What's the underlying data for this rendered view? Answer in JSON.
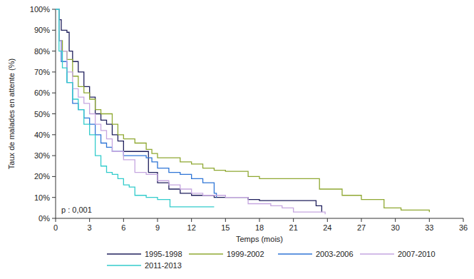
{
  "chart_data": {
    "type": "step",
    "x_label": "Temps (mois)",
    "y_label": "Taux de malades en attente (%)",
    "annotation": "p : 0,001",
    "xlim": [
      0,
      36
    ],
    "ylim": [
      0,
      100
    ],
    "xticks": [
      0,
      3,
      6,
      9,
      12,
      15,
      18,
      21,
      24,
      27,
      30,
      33,
      36
    ],
    "yticks": [
      {
        "value": 0,
        "label": "0%"
      },
      {
        "value": 10,
        "label": "10%"
      },
      {
        "value": 20,
        "label": "20%"
      },
      {
        "value": 30,
        "label": "30%"
      },
      {
        "value": 40,
        "label": "40%"
      },
      {
        "value": 50,
        "label": "50%"
      },
      {
        "value": 60,
        "label": "60%"
      },
      {
        "value": 70,
        "label": "70%"
      },
      {
        "value": 80,
        "label": "80%"
      },
      {
        "value": 90,
        "label": "90%"
      },
      {
        "value": 100,
        "label": "100%"
      }
    ],
    "grid": false,
    "legend": "bottom",
    "series": [
      {
        "name": "1995-1998",
        "color": "#1f1f5c",
        "x": [
          0,
          0.3,
          0.5,
          1,
          1.2,
          1.5,
          2,
          2.5,
          3,
          3.5,
          4,
          4.5,
          5,
          5.5,
          6,
          8.2,
          9,
          10,
          11,
          12,
          14,
          17,
          18,
          23,
          23.5
        ],
        "values": [
          100,
          95,
          90,
          89,
          80,
          75,
          70,
          63,
          58,
          50,
          47,
          45,
          40,
          37,
          32,
          22,
          17,
          14,
          12,
          11,
          10,
          9,
          8.5,
          6,
          3
        ]
      },
      {
        "name": "1999-2002",
        "color": "#8fa832",
        "x": [
          0,
          0.3,
          0.6,
          1,
          1.5,
          2,
          2.5,
          3,
          3.5,
          4,
          5,
          5.5,
          6,
          7,
          8,
          8.5,
          9,
          11,
          12,
          13,
          14,
          15,
          17,
          18,
          23.3,
          25.3,
          27,
          29,
          30.5,
          33
        ],
        "values": [
          100,
          85,
          80,
          76,
          68,
          63,
          60,
          57,
          52,
          50,
          45,
          40,
          38,
          36,
          33,
          31,
          29,
          27,
          26,
          24,
          23,
          22.5,
          20,
          19,
          14,
          11,
          9,
          5,
          4,
          3
        ]
      },
      {
        "name": "2003-2006",
        "color": "#2e75d6",
        "x": [
          0,
          0.3,
          0.5,
          1,
          1.5,
          2,
          2.5,
          3,
          3.5,
          4,
          4.5,
          5,
          6,
          8,
          8.5,
          9,
          10,
          11,
          12,
          13,
          14,
          14.2
        ],
        "values": [
          100,
          85,
          75,
          65,
          55,
          52,
          48,
          45,
          40,
          36,
          34,
          32,
          30,
          29,
          27,
          24,
          22,
          21,
          19,
          17,
          12,
          10
        ]
      },
      {
        "name": "2007-2010",
        "color": "#c5a6e0",
        "x": [
          0,
          0.3,
          0.5,
          1,
          1.5,
          2,
          2.5,
          3,
          3.5,
          4,
          4.5,
          5,
          6,
          7,
          8,
          9,
          10,
          11,
          12,
          13,
          15,
          17,
          19,
          20,
          21,
          23.8
        ],
        "values": [
          100,
          85,
          80,
          70,
          62,
          58,
          55,
          50,
          45,
          42,
          38,
          32,
          28,
          22,
          21,
          18,
          16,
          14,
          12,
          11,
          10,
          7,
          6,
          5,
          3,
          2
        ]
      },
      {
        "name": "2011-2013",
        "color": "#33cccc",
        "x": [
          0,
          0.3,
          0.6,
          1,
          1.5,
          2,
          2.5,
          3,
          3.5,
          4,
          4.5,
          5,
          5.5,
          6,
          6.5,
          7,
          8,
          9,
          10.1,
          14
        ],
        "values": [
          100,
          80,
          72,
          65,
          57,
          52,
          45,
          40,
          30,
          25,
          22,
          21,
          19,
          16,
          15,
          11,
          10,
          9,
          5.5,
          5.5
        ]
      }
    ]
  }
}
